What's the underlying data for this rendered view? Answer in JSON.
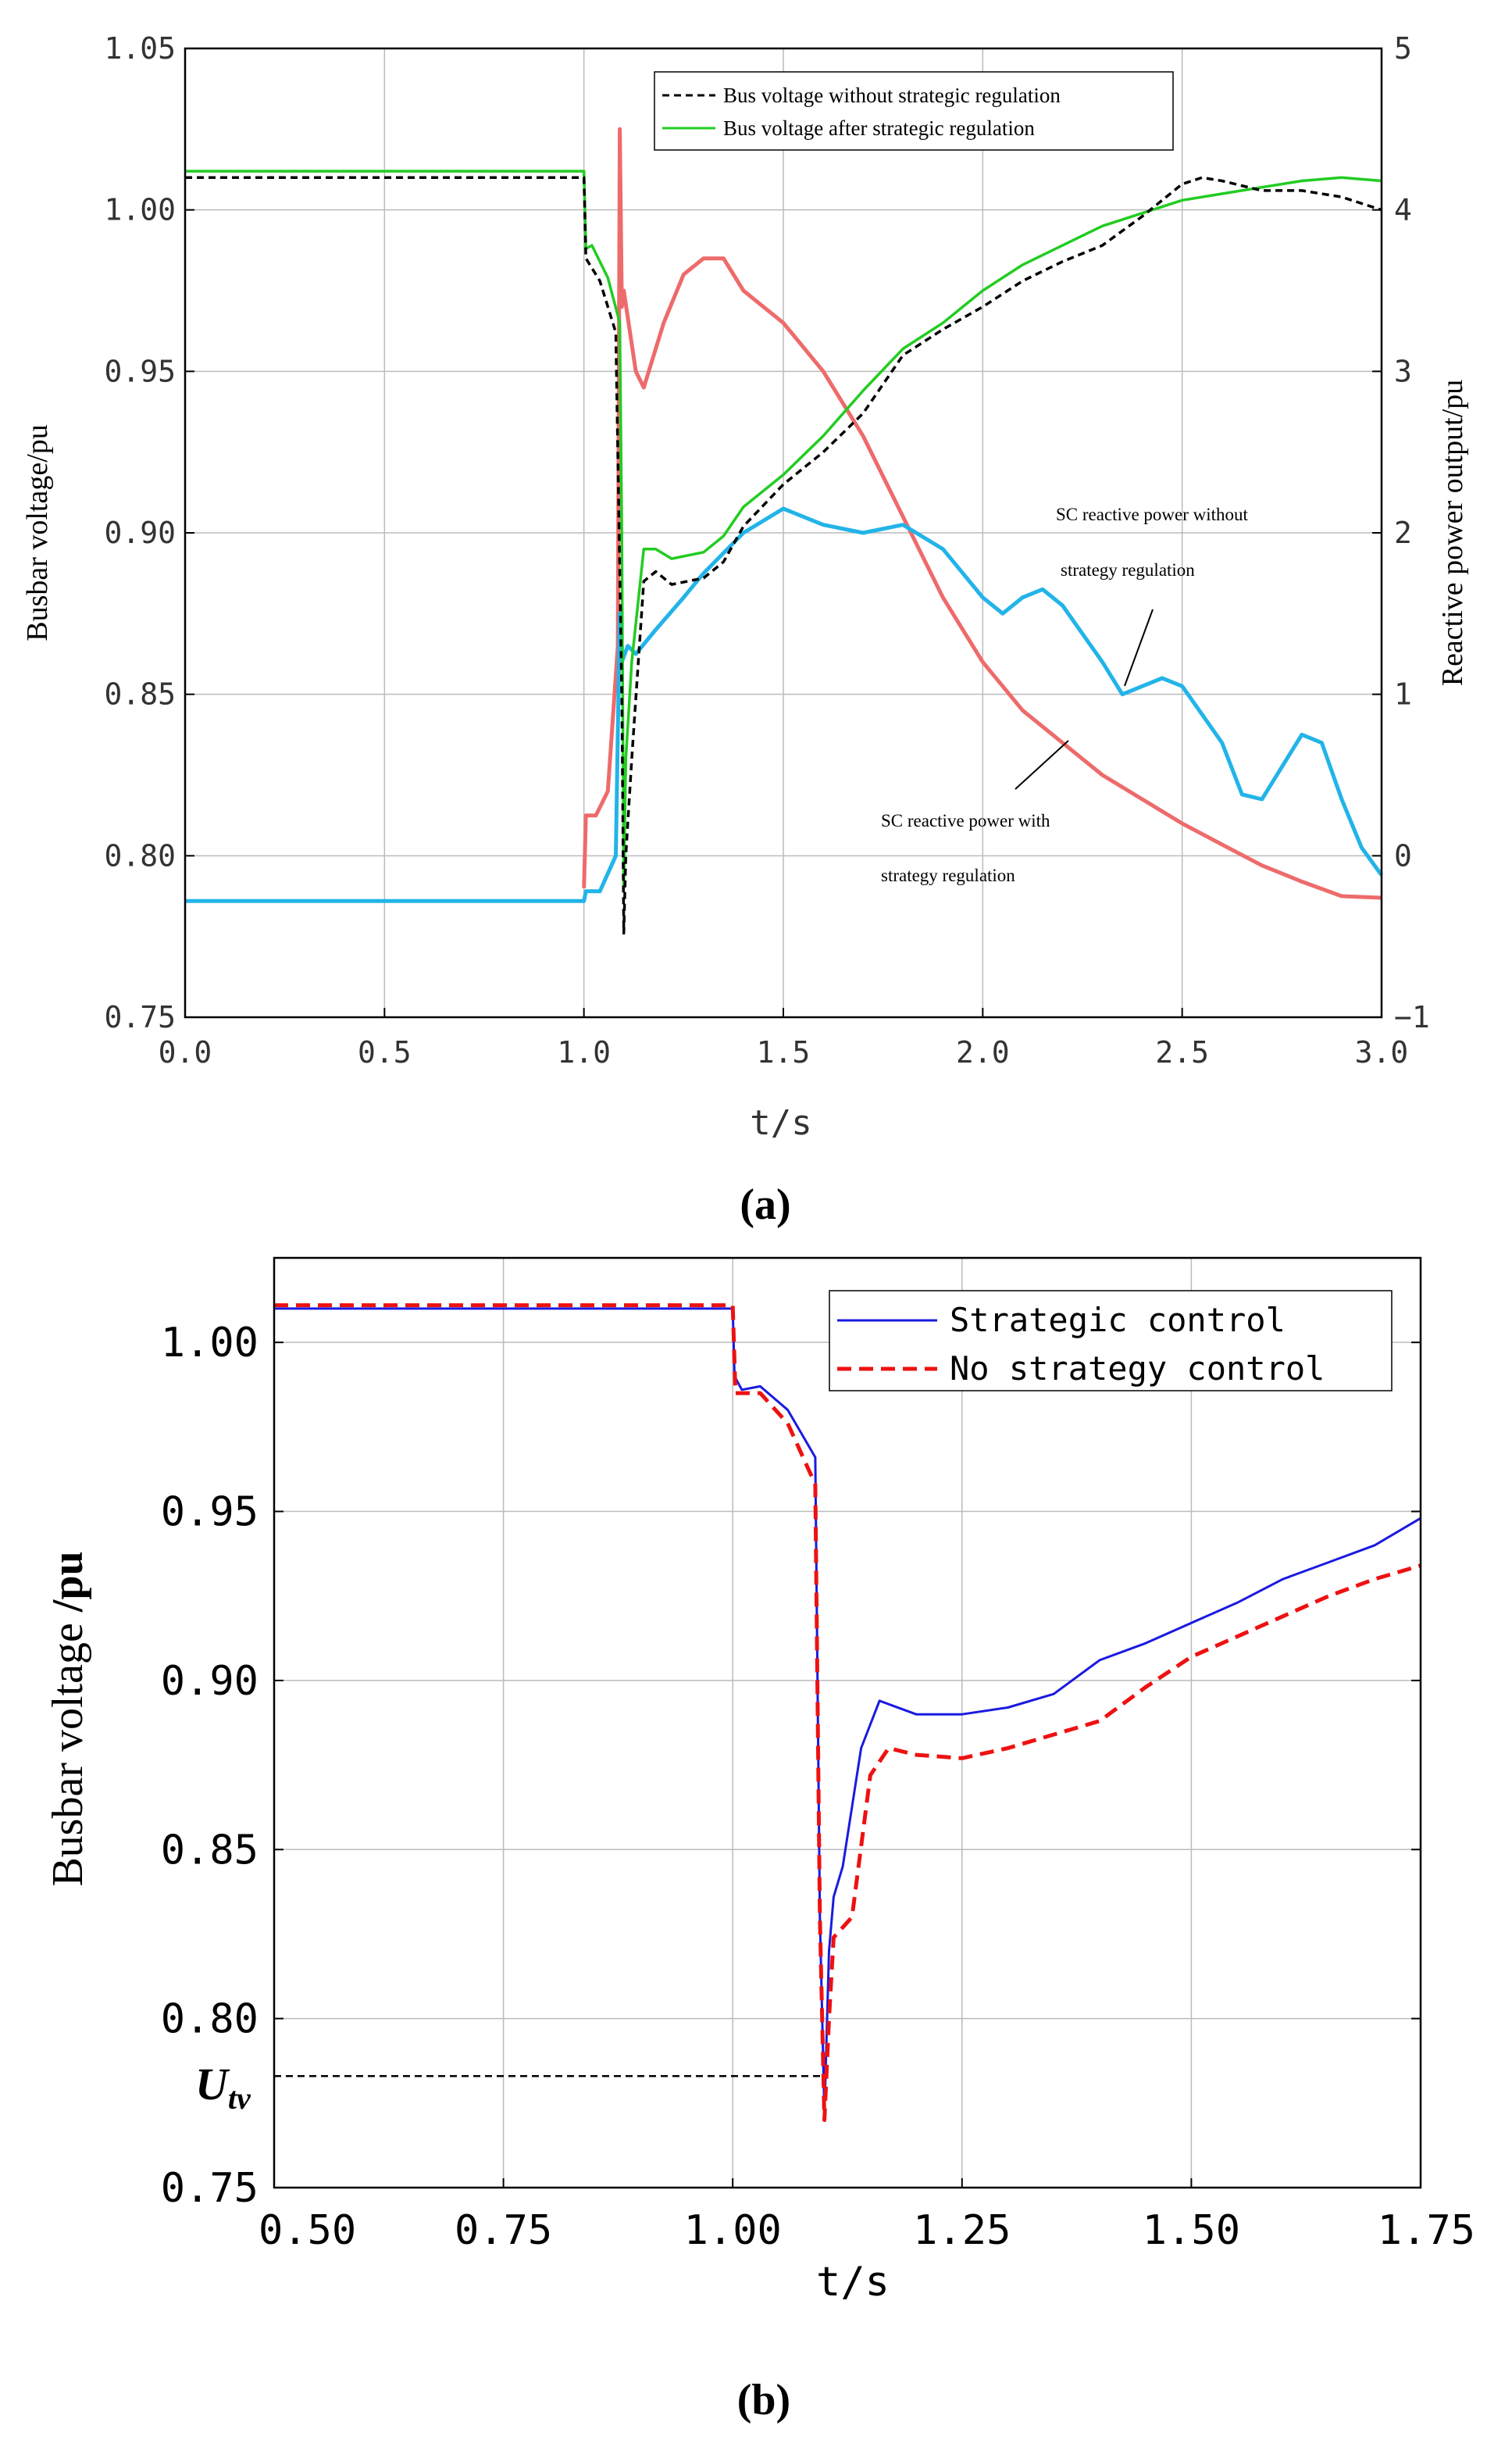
{
  "figure": {
    "panel_a_label": "(a)",
    "panel_b_label": "(b)"
  },
  "chart_data": [
    {
      "id": "a",
      "type": "line",
      "title": "",
      "xlabel": "t/s",
      "ylabel": "Busbar voltage/pu",
      "y2label": "Reactive power output/pu",
      "xlim": [
        0,
        3
      ],
      "ylim": [
        0.75,
        1.05
      ],
      "y2lim": [
        -1,
        5
      ],
      "xticks": [
        0,
        0.5,
        1,
        1.5,
        2,
        2.5,
        3
      ],
      "xtick_labels": [
        "0.0",
        "0.5",
        "1.0",
        "1.5",
        "2.0",
        "2.5",
        "3.0"
      ],
      "yticks": [
        0.75,
        0.8,
        0.85,
        0.9,
        0.95,
        1.0,
        1.05
      ],
      "ytick_labels": [
        "0.75",
        "0.80",
        "0.85",
        "0.90",
        "0.95",
        "1.00",
        "1.05"
      ],
      "y2ticks": [
        -1,
        0,
        1,
        2,
        3,
        4,
        5
      ],
      "y2tick_labels": [
        "−1",
        "0",
        "1",
        "2",
        "3",
        "4",
        "5"
      ],
      "grid": true,
      "legend_position": "top-right",
      "series": [
        {
          "name": "Bus voltage without strategic regulation",
          "axis": "left",
          "color": "#000000",
          "dash": "dashed",
          "legend": true,
          "points": [
            [
              0,
              1.01
            ],
            [
              1.0,
              1.01
            ],
            [
              1.005,
              0.985
            ],
            [
              1.04,
              0.978
            ],
            [
              1.08,
              0.962
            ],
            [
              1.095,
              0.85
            ],
            [
              1.1,
              0.776
            ],
            [
              1.105,
              0.8
            ],
            [
              1.12,
              0.83
            ],
            [
              1.15,
              0.885
            ],
            [
              1.18,
              0.888
            ],
            [
              1.22,
              0.884
            ],
            [
              1.3,
              0.886
            ],
            [
              1.35,
              0.891
            ],
            [
              1.4,
              0.902
            ],
            [
              1.5,
              0.915
            ],
            [
              1.6,
              0.925
            ],
            [
              1.7,
              0.937
            ],
            [
              1.8,
              0.955
            ],
            [
              1.9,
              0.963
            ],
            [
              2.0,
              0.97
            ],
            [
              2.1,
              0.978
            ],
            [
              2.2,
              0.984
            ],
            [
              2.3,
              0.989
            ],
            [
              2.4,
              0.998
            ],
            [
              2.5,
              1.008
            ],
            [
              2.55,
              1.01
            ],
            [
              2.6,
              1.009
            ],
            [
              2.7,
              1.006
            ],
            [
              2.8,
              1.006
            ],
            [
              2.9,
              1.004
            ],
            [
              3.0,
              1.0
            ]
          ]
        },
        {
          "name": "Bus voltage after strategic regulation",
          "axis": "left",
          "color": "#22cc22",
          "dash": "solid",
          "legend": true,
          "points": [
            [
              0,
              1.012
            ],
            [
              1.0,
              1.012
            ],
            [
              1.005,
              0.988
            ],
            [
              1.02,
              0.989
            ],
            [
              1.06,
              0.979
            ],
            [
              1.09,
              0.965
            ],
            [
              1.095,
              0.9
            ],
            [
              1.1,
              0.79
            ],
            [
              1.105,
              0.83
            ],
            [
              1.12,
              0.86
            ],
            [
              1.15,
              0.895
            ],
            [
              1.18,
              0.895
            ],
            [
              1.22,
              0.892
            ],
            [
              1.3,
              0.894
            ],
            [
              1.35,
              0.899
            ],
            [
              1.4,
              0.908
            ],
            [
              1.5,
              0.918
            ],
            [
              1.6,
              0.93
            ],
            [
              1.7,
              0.944
            ],
            [
              1.8,
              0.957
            ],
            [
              1.9,
              0.965
            ],
            [
              2.0,
              0.975
            ],
            [
              2.1,
              0.983
            ],
            [
              2.2,
              0.989
            ],
            [
              2.3,
              0.995
            ],
            [
              2.4,
              0.999
            ],
            [
              2.5,
              1.003
            ],
            [
              2.6,
              1.005
            ],
            [
              2.7,
              1.007
            ],
            [
              2.8,
              1.009
            ],
            [
              2.9,
              1.01
            ],
            [
              3.0,
              1.009
            ]
          ]
        },
        {
          "name": "SC reactive power without strategy regulation",
          "axis": "right",
          "color": "#ee6b6b",
          "dash": "solid",
          "legend": false,
          "points": [
            [
              1.0,
              -0.2
            ],
            [
              1.005,
              0.25
            ],
            [
              1.03,
              0.25
            ],
            [
              1.06,
              0.4
            ],
            [
              1.085,
              1.3
            ],
            [
              1.09,
              4.5
            ],
            [
              1.095,
              3.4
            ],
            [
              1.1,
              3.5
            ],
            [
              1.13,
              3.0
            ],
            [
              1.15,
              2.9
            ],
            [
              1.2,
              3.3
            ],
            [
              1.25,
              3.6
            ],
            [
              1.3,
              3.7
            ],
            [
              1.35,
              3.7
            ],
            [
              1.4,
              3.5
            ],
            [
              1.5,
              3.3
            ],
            [
              1.6,
              3.0
            ],
            [
              1.7,
              2.6
            ],
            [
              1.8,
              2.1
            ],
            [
              1.9,
              1.6
            ],
            [
              2.0,
              1.2
            ],
            [
              2.1,
              0.9
            ],
            [
              2.2,
              0.7
            ],
            [
              2.3,
              0.5
            ],
            [
              2.4,
              0.35
            ],
            [
              2.5,
              0.2
            ],
            [
              2.6,
              0.07
            ],
            [
              2.7,
              -0.06
            ],
            [
              2.8,
              -0.16
            ],
            [
              2.9,
              -0.25
            ],
            [
              3.0,
              -0.26
            ]
          ]
        },
        {
          "name": "SC reactive power with strategy regulation",
          "axis": "right",
          "color": "#22b4e8",
          "dash": "solid",
          "legend": false,
          "points": [
            [
              0,
              -0.28
            ],
            [
              1.0,
              -0.28
            ],
            [
              1.005,
              -0.22
            ],
            [
              1.04,
              -0.22
            ],
            [
              1.08,
              0.0
            ],
            [
              1.09,
              1.5
            ],
            [
              1.095,
              1.2
            ],
            [
              1.11,
              1.3
            ],
            [
              1.13,
              1.25
            ],
            [
              1.18,
              1.4
            ],
            [
              1.25,
              1.6
            ],
            [
              1.3,
              1.75
            ],
            [
              1.4,
              2.0
            ],
            [
              1.5,
              2.15
            ],
            [
              1.6,
              2.05
            ],
            [
              1.7,
              2.0
            ],
            [
              1.8,
              2.05
            ],
            [
              1.9,
              1.9
            ],
            [
              2.0,
              1.6
            ],
            [
              2.05,
              1.5
            ],
            [
              2.1,
              1.6
            ],
            [
              2.15,
              1.65
            ],
            [
              2.2,
              1.55
            ],
            [
              2.3,
              1.2
            ],
            [
              2.35,
              1.0
            ],
            [
              2.4,
              1.05
            ],
            [
              2.45,
              1.1
            ],
            [
              2.5,
              1.05
            ],
            [
              2.6,
              0.7
            ],
            [
              2.65,
              0.38
            ],
            [
              2.7,
              0.35
            ],
            [
              2.75,
              0.55
            ],
            [
              2.8,
              0.75
            ],
            [
              2.85,
              0.7
            ],
            [
              2.9,
              0.35
            ],
            [
              2.95,
              0.05
            ],
            [
              3.0,
              -0.12
            ]
          ]
        }
      ],
      "annotations": [
        {
          "line1": "SC reactive power without",
          "line2": "strategy regulation"
        },
        {
          "line1": "SC reactive power with",
          "line2": "strategy regulation"
        }
      ]
    },
    {
      "id": "b",
      "type": "line",
      "title": "",
      "xlabel": "t/s",
      "ylabel_main": "Busbar voltage ",
      "ylabel_bold": "/pu",
      "xlim": [
        0.5,
        1.75
      ],
      "ylim": [
        0.75,
        1.025
      ],
      "xticks": [
        0.5,
        0.75,
        1.0,
        1.25,
        1.5,
        1.75
      ],
      "xtick_labels": [
        "0.50",
        "0.75",
        "1.00",
        "1.25",
        "1.50",
        "1.75"
      ],
      "yticks": [
        0.75,
        0.8,
        0.85,
        0.9,
        0.95,
        1.0
      ],
      "ytick_labels": [
        "0.75",
        "0.80",
        "0.85",
        "0.90",
        "0.95",
        "1.00"
      ],
      "grid": true,
      "legend_position": "top-right",
      "reference_line": {
        "label_main": "U",
        "label_sub": "tv",
        "y": 0.783,
        "x_end": 1.1
      },
      "series": [
        {
          "name": "Strategic control",
          "color": "#1a1ae0",
          "dash": "solid",
          "points": [
            [
              0.5,
              1.01
            ],
            [
              1.0,
              1.01
            ],
            [
              1.002,
              0.99
            ],
            [
              1.01,
              0.986
            ],
            [
              1.03,
              0.987
            ],
            [
              1.06,
              0.98
            ],
            [
              1.09,
              0.966
            ],
            [
              1.095,
              0.83
            ],
            [
              1.1,
              0.772
            ],
            [
              1.105,
              0.82
            ],
            [
              1.11,
              0.836
            ],
            [
              1.12,
              0.845
            ],
            [
              1.14,
              0.88
            ],
            [
              1.16,
              0.894
            ],
            [
              1.2,
              0.89
            ],
            [
              1.25,
              0.89
            ],
            [
              1.3,
              0.892
            ],
            [
              1.35,
              0.896
            ],
            [
              1.4,
              0.906
            ],
            [
              1.45,
              0.911
            ],
            [
              1.5,
              0.917
            ],
            [
              1.55,
              0.923
            ],
            [
              1.6,
              0.93
            ],
            [
              1.65,
              0.935
            ],
            [
              1.7,
              0.94
            ],
            [
              1.75,
              0.948
            ]
          ]
        },
        {
          "name": "No strategy control",
          "color": "#ee1111",
          "dash": "dashed",
          "points": [
            [
              0.5,
              1.011
            ],
            [
              1.0,
              1.011
            ],
            [
              1.003,
              0.985
            ],
            [
              1.03,
              0.985
            ],
            [
              1.06,
              0.976
            ],
            [
              1.09,
              0.958
            ],
            [
              1.095,
              0.83
            ],
            [
              1.1,
              0.77
            ],
            [
              1.105,
              0.8
            ],
            [
              1.11,
              0.824
            ],
            [
              1.13,
              0.83
            ],
            [
              1.15,
              0.872
            ],
            [
              1.17,
              0.88
            ],
            [
              1.2,
              0.878
            ],
            [
              1.25,
              0.877
            ],
            [
              1.3,
              0.88
            ],
            [
              1.35,
              0.884
            ],
            [
              1.4,
              0.888
            ],
            [
              1.45,
              0.898
            ],
            [
              1.5,
              0.907
            ],
            [
              1.55,
              0.913
            ],
            [
              1.6,
              0.919
            ],
            [
              1.65,
              0.925
            ],
            [
              1.7,
              0.93
            ],
            [
              1.75,
              0.934
            ]
          ]
        }
      ]
    }
  ]
}
